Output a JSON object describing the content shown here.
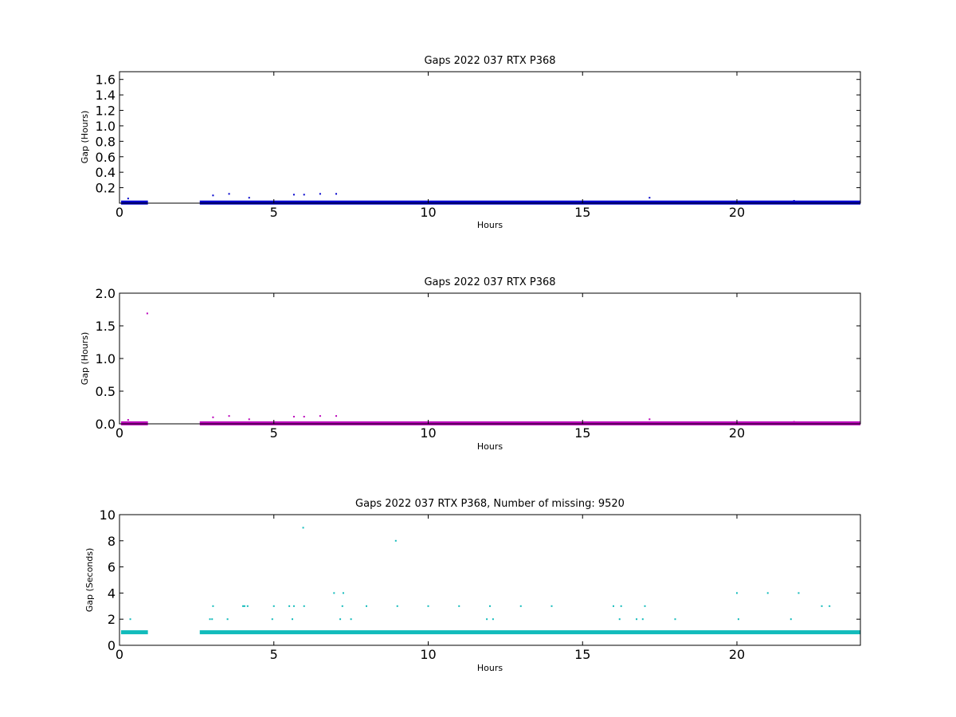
{
  "chart_data": [
    {
      "type": "scatter",
      "title": "Gaps 2022 037 RTX  P368",
      "xlabel": "Hours",
      "ylabel": "Gap (Hours)",
      "xlim": [
        0,
        24
      ],
      "ylim": [
        0,
        1.7
      ],
      "xticks": [
        "0",
        "5",
        "10",
        "15",
        "20"
      ],
      "yticks": [
        "0.2",
        "0.4",
        "0.6",
        "0.8",
        "1.0",
        "1.2",
        "1.4",
        "1.6"
      ],
      "color": "#0000cc",
      "baseline": {
        "y": 0.0083,
        "segments": [
          [
            0.05,
            0.92
          ],
          [
            2.6,
            24.0
          ]
        ]
      },
      "points": [
        [
          0.28,
          0.06
        ],
        [
          3.03,
          0.1
        ],
        [
          3.55,
          0.12
        ],
        [
          4.2,
          0.07
        ],
        [
          5.65,
          0.11
        ],
        [
          5.98,
          0.11
        ],
        [
          6.5,
          0.12
        ],
        [
          7.02,
          0.12
        ],
        [
          17.17,
          0.07
        ],
        [
          21.85,
          0.03
        ]
      ]
    },
    {
      "type": "scatter",
      "title": "Gaps 2022 037 RTX  P368",
      "xlabel": "Hours",
      "ylabel": "Gap (Hours)",
      "xlim": [
        0,
        24
      ],
      "ylim": [
        0,
        2.0
      ],
      "xticks": [
        "0",
        "5",
        "10",
        "15",
        "20"
      ],
      "yticks": [
        "0.0",
        "0.5",
        "1.0",
        "1.5",
        "2.0"
      ],
      "color": "#bb00bb",
      "baseline": {
        "y": 0.0083,
        "segments": [
          [
            0.05,
            0.92
          ],
          [
            2.6,
            24.0
          ]
        ]
      },
      "points": [
        [
          0.9,
          1.69
        ],
        [
          0.28,
          0.06
        ],
        [
          3.03,
          0.1
        ],
        [
          3.55,
          0.12
        ],
        [
          4.2,
          0.07
        ],
        [
          5.65,
          0.11
        ],
        [
          5.98,
          0.11
        ],
        [
          6.5,
          0.12
        ],
        [
          7.02,
          0.12
        ],
        [
          17.17,
          0.07
        ],
        [
          21.85,
          0.03
        ]
      ]
    },
    {
      "type": "scatter",
      "title": "Gaps 2022 037 RTX  P368, Number of missing: 9520",
      "xlabel": "Hours",
      "ylabel": "Gap (Seconds)",
      "xlim": [
        0,
        24
      ],
      "ylim": [
        0,
        10
      ],
      "xticks": [
        "0",
        "5",
        "10",
        "15",
        "20"
      ],
      "yticks": [
        "0",
        "2",
        "4",
        "6",
        "8",
        "10"
      ],
      "color": "#11bbbb",
      "baseline": {
        "y": 1,
        "segments": [
          [
            0.05,
            0.92
          ],
          [
            2.6,
            24.0
          ]
        ]
      },
      "points": [
        [
          0.35,
          2
        ],
        [
          2.93,
          2
        ],
        [
          3.0,
          2
        ],
        [
          3.03,
          3
        ],
        [
          3.5,
          2
        ],
        [
          4.0,
          3
        ],
        [
          4.05,
          3
        ],
        [
          4.15,
          3
        ],
        [
          4.95,
          2
        ],
        [
          5.0,
          3
        ],
        [
          5.5,
          3
        ],
        [
          5.6,
          2
        ],
        [
          5.65,
          3
        ],
        [
          5.95,
          9
        ],
        [
          5.98,
          3
        ],
        [
          6.95,
          4
        ],
        [
          7.15,
          2
        ],
        [
          7.22,
          3
        ],
        [
          7.25,
          4
        ],
        [
          7.5,
          2
        ],
        [
          8.0,
          3
        ],
        [
          8.95,
          8
        ],
        [
          9.0,
          3
        ],
        [
          10.0,
          3
        ],
        [
          11.0,
          3
        ],
        [
          11.9,
          2
        ],
        [
          12.0,
          3
        ],
        [
          12.1,
          2
        ],
        [
          13.0,
          3
        ],
        [
          14.0,
          3
        ],
        [
          16.0,
          3
        ],
        [
          16.2,
          2
        ],
        [
          16.25,
          3
        ],
        [
          16.75,
          2
        ],
        [
          16.95,
          2
        ],
        [
          17.02,
          3
        ],
        [
          18.0,
          2
        ],
        [
          20.0,
          4
        ],
        [
          20.05,
          2
        ],
        [
          21.0,
          4
        ],
        [
          21.75,
          2
        ],
        [
          22.0,
          4
        ],
        [
          22.75,
          3
        ],
        [
          23.0,
          3
        ]
      ]
    }
  ]
}
